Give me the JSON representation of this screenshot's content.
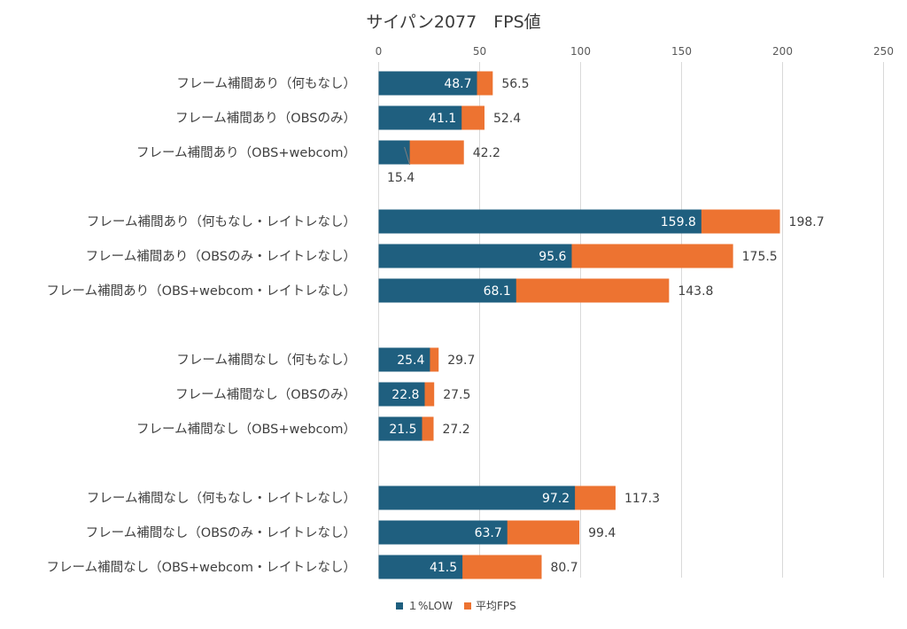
{
  "chart_data": {
    "type": "bar",
    "orientation": "horizontal",
    "title": "サイパン2077　FPS値",
    "xlim": [
      0,
      250
    ],
    "xticks": [
      0,
      50,
      100,
      150,
      200,
      250
    ],
    "grid": true,
    "legend_position": "bottom",
    "categories": [
      "フレーム補間あり（何もなし）",
      "フレーム補間あり（OBSのみ）",
      "フレーム補間あり（OBS+webcom）",
      "フレーム補間あり（何もなし・レイトレなし）",
      "フレーム補間あり（OBSのみ・レイトレなし）",
      "フレーム補間あり（OBS+webcom・レイトレなし）",
      "フレーム補間なし（何もなし）",
      "フレーム補間なし（OBSのみ）",
      "フレーム補間なし（OBS+webcom）",
      "フレーム補間なし（何もなし・レイトレなし）",
      "フレーム補間なし（OBSのみ・レイトレなし）",
      "フレーム補間なし（OBS+webcom・レイトレなし）"
    ],
    "series": [
      {
        "name": "１%LOW",
        "color": "#1f5f7f",
        "values": [
          48.7,
          41.1,
          15.4,
          159.8,
          95.6,
          68.1,
          25.4,
          22.8,
          21.5,
          97.2,
          63.7,
          41.5
        ],
        "labels": [
          "48.7",
          "41.1",
          "15.4",
          "159.8",
          "95.6",
          "68.1",
          "25.4",
          "22.8",
          "21.5",
          "97.2",
          "63.7",
          "41.5"
        ]
      },
      {
        "name": "平均FPS",
        "color": "#ed7331",
        "values": [
          56.5,
          52.4,
          42.2,
          198.7,
          175.5,
          143.8,
          29.7,
          27.5,
          27.2,
          117.3,
          99.4,
          80.7
        ],
        "labels": [
          "56.5",
          "52.4",
          "42.2",
          "198.7",
          "175.5",
          "143.8",
          "29.7",
          "27.5",
          "27.2",
          "117.3",
          "99.4",
          "80.7"
        ]
      }
    ]
  }
}
